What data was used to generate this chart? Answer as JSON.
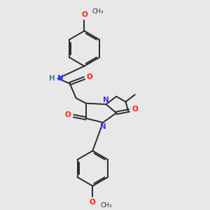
{
  "bg_color": "#e8e8e8",
  "bond_color": "#2a2a2a",
  "N_color": "#3333ff",
  "O_color": "#ff2200",
  "NH_color": "#2a8a8a",
  "figsize": [
    3.0,
    3.0
  ],
  "dpi": 100,
  "xlim": [
    0.0,
    1.0
  ],
  "ylim": [
    0.0,
    1.0
  ]
}
